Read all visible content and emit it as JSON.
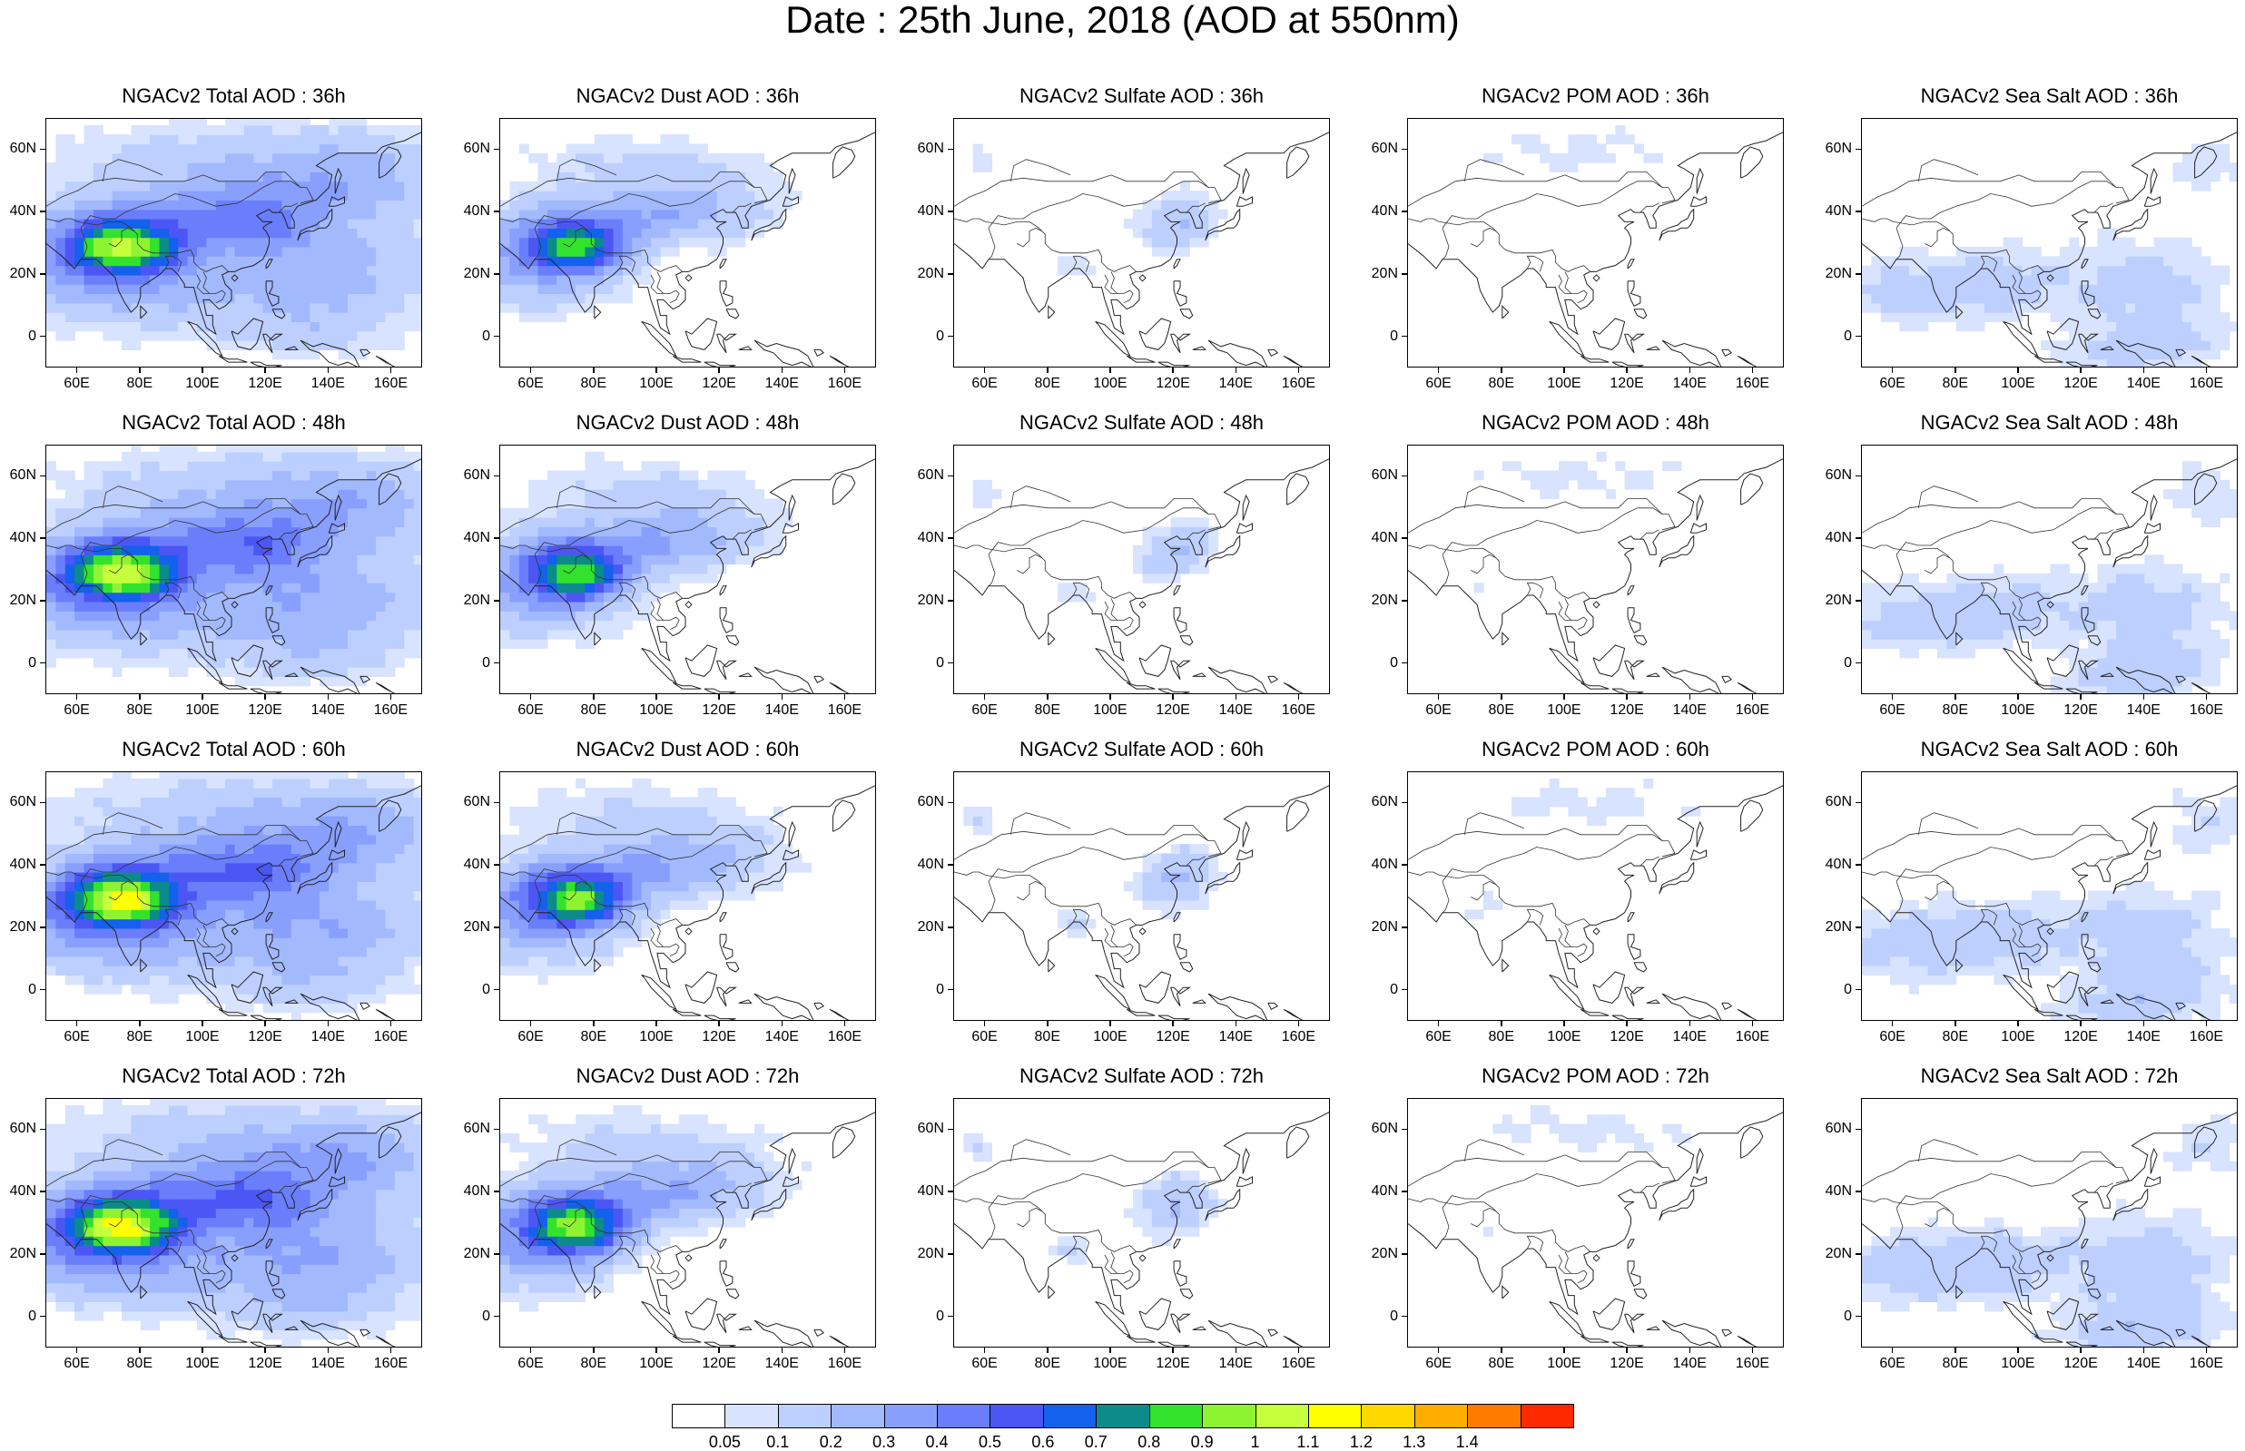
{
  "main_title": "Date : 25th June, 2018 (AOD at 550nm)",
  "panel_title_prefix": "NGACv2",
  "species": [
    {
      "key": "total",
      "label": "Total AOD"
    },
    {
      "key": "dust",
      "label": "Dust AOD"
    },
    {
      "key": "sulfate",
      "label": "Sulfate AOD"
    },
    {
      "key": "pom",
      "label": "POM AOD"
    },
    {
      "key": "seasalt",
      "label": "Sea Salt AOD"
    }
  ],
  "forecast_hours": [
    "36h",
    "48h",
    "60h",
    "72h"
  ],
  "panel_titles": [
    [
      "NGACv2 Total AOD : 36h",
      "NGACv2 Dust AOD : 36h",
      "NGACv2 Sulfate AOD : 36h",
      "NGACv2 POM AOD : 36h",
      "NGACv2 Sea Salt AOD : 36h"
    ],
    [
      "NGACv2 Total AOD : 48h",
      "NGACv2 Dust AOD : 48h",
      "NGACv2 Sulfate AOD : 48h",
      "NGACv2 POM AOD : 48h",
      "NGACv2 Sea Salt AOD : 48h"
    ],
    [
      "NGACv2 Total AOD : 60h",
      "NGACv2 Dust AOD : 60h",
      "NGACv2 Sulfate AOD : 60h",
      "NGACv2 POM AOD : 60h",
      "NGACv2 Sea Salt AOD : 60h"
    ],
    [
      "NGACv2 Total AOD : 72h",
      "NGACv2 Dust AOD : 72h",
      "NGACv2 Sulfate AOD : 72h",
      "NGACv2 POM AOD : 72h",
      "NGACv2 Sea Salt  AOD : 72h"
    ]
  ],
  "map_extent": {
    "lon_range": [
      50,
      170
    ],
    "lat_range": [
      -10,
      70
    ]
  },
  "lon_ticks": [
    "60E",
    "80E",
    "100E",
    "120E",
    "140E",
    "160E"
  ],
  "lon_tick_values": [
    60,
    80,
    100,
    120,
    140,
    160
  ],
  "lat_ticks": [
    "60N",
    "40N",
    "20N",
    "0"
  ],
  "lat_tick_values": [
    60,
    40,
    20,
    0
  ],
  "colorbar": {
    "labels": [
      "0.05",
      "0.1",
      "0.2",
      "0.3",
      "0.4",
      "0.5",
      "0.6",
      "0.7",
      "0.8",
      "0.9",
      "1",
      "1.1",
      "1.2",
      "1.3",
      "1.4"
    ],
    "colors": [
      "#ffffff",
      "#d7e3ff",
      "#bccffe",
      "#a2b9fe",
      "#889ffe",
      "#6a7efc",
      "#4c56f4",
      "#1361ec",
      "#0c8b8b",
      "#32e22d",
      "#8ef432",
      "#c6ff3c",
      "#ffff00",
      "#ffd800",
      "#ffae00",
      "#ff7b00",
      "#ff2a00"
    ]
  }
}
